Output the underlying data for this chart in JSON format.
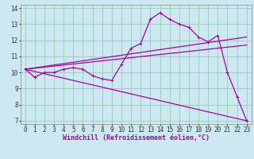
{
  "xlabel": "Windchill (Refroidissement éolien,°C)",
  "background_color": "#cce8f0",
  "line_color": "#aa00aa",
  "grid_color": "#99ccbb",
  "xlim": [
    -0.5,
    23.5
  ],
  "ylim": [
    6.8,
    14.2
  ],
  "yticks": [
    7,
    8,
    9,
    10,
    11,
    12,
    13,
    14
  ],
  "xticks": [
    0,
    1,
    2,
    3,
    4,
    5,
    6,
    7,
    8,
    9,
    10,
    11,
    12,
    13,
    14,
    15,
    16,
    17,
    18,
    19,
    20,
    21,
    22,
    23
  ],
  "series1_x": [
    0,
    1,
    2,
    3,
    4,
    5,
    6,
    7,
    8,
    9,
    10,
    11,
    12,
    13,
    14,
    15,
    16,
    17,
    18,
    19,
    20,
    21,
    22,
    23
  ],
  "series1_y": [
    10.2,
    9.7,
    10.0,
    10.0,
    10.2,
    10.3,
    10.2,
    9.8,
    9.6,
    9.5,
    10.5,
    11.5,
    11.8,
    13.3,
    13.7,
    13.3,
    13.0,
    12.8,
    12.2,
    11.9,
    12.3,
    10.0,
    8.5,
    7.0
  ],
  "series2_x": [
    0,
    23
  ],
  "series2_y": [
    10.2,
    12.2
  ],
  "series3_x": [
    0,
    23
  ],
  "series3_y": [
    10.2,
    11.7
  ],
  "series4_x": [
    0,
    23
  ],
  "series4_y": [
    10.2,
    7.0
  ],
  "tick_fontsize": 5.5,
  "label_fontsize": 6,
  "marker_size": 2.5
}
